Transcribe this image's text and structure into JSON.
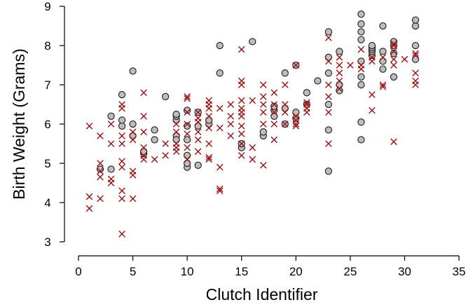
{
  "chart_data": {
    "type": "scatter",
    "xlabel": "Clutch Identifier",
    "ylabel": "Birth Weight (Grams)",
    "xlim": [
      0,
      35
    ],
    "ylim": [
      3,
      9
    ],
    "xticks": [
      0,
      5,
      10,
      15,
      20,
      25,
      30,
      35
    ],
    "yticks": [
      3,
      4,
      5,
      6,
      7,
      8,
      9
    ],
    "grid": false,
    "series": [
      {
        "marker": "circle",
        "color": "#bdbdbd",
        "edge_color": "#1a1a1a",
        "points": [
          [
            2,
            4.85
          ],
          [
            3,
            4.85
          ],
          [
            3,
            6.2
          ],
          [
            4,
            6.75
          ],
          [
            4,
            5.95
          ],
          [
            4,
            6.1
          ],
          [
            5,
            7.35
          ],
          [
            5,
            6.0
          ],
          [
            5,
            5.7
          ],
          [
            6,
            5.25
          ],
          [
            6,
            5.3
          ],
          [
            7,
            5.85
          ],
          [
            7,
            5.6
          ],
          [
            8,
            6.7
          ],
          [
            9,
            5.7
          ],
          [
            9,
            6.1
          ],
          [
            9,
            6.2
          ],
          [
            9,
            6.25
          ],
          [
            9,
            5.6
          ],
          [
            10,
            4.9
          ],
          [
            10,
            5.0
          ],
          [
            10,
            5.2
          ],
          [
            10,
            5.6
          ],
          [
            10,
            5.95
          ],
          [
            10,
            6.35
          ],
          [
            11,
            4.95
          ],
          [
            11,
            5.95
          ],
          [
            11,
            6.3
          ],
          [
            12,
            6.0
          ],
          [
            12,
            6.1
          ],
          [
            13,
            7.3
          ],
          [
            13,
            8.0
          ],
          [
            15,
            5.4
          ],
          [
            15,
            5.5
          ],
          [
            16,
            8.1
          ],
          [
            17,
            5.7
          ],
          [
            17,
            5.8
          ],
          [
            18,
            6.2
          ],
          [
            18,
            6.35
          ],
          [
            18,
            6.45
          ],
          [
            19,
            6.0
          ],
          [
            19,
            6.4
          ],
          [
            19,
            7.3
          ],
          [
            20,
            6.15
          ],
          [
            20,
            6.3
          ],
          [
            20,
            7.5
          ],
          [
            21,
            6.5
          ],
          [
            21,
            6.8
          ],
          [
            22,
            7.1
          ],
          [
            23,
            4.8
          ],
          [
            23,
            5.85
          ],
          [
            23,
            6.5
          ],
          [
            23,
            7.3
          ],
          [
            23,
            7.7
          ],
          [
            23,
            8.35
          ],
          [
            24,
            6.85
          ],
          [
            24,
            7.0
          ],
          [
            24,
            7.85
          ],
          [
            26,
            5.6
          ],
          [
            26,
            6.05
          ],
          [
            26,
            7.0
          ],
          [
            26,
            7.2
          ],
          [
            26,
            7.6
          ],
          [
            26,
            8.15
          ],
          [
            26,
            8.35
          ],
          [
            26,
            8.55
          ],
          [
            26,
            8.8
          ],
          [
            27,
            7.75
          ],
          [
            27,
            7.85
          ],
          [
            27,
            7.9
          ],
          [
            27,
            7.95
          ],
          [
            27,
            8.0
          ],
          [
            28,
            7.4
          ],
          [
            28,
            7.6
          ],
          [
            28,
            7.85
          ],
          [
            28,
            8.5
          ],
          [
            29,
            7.2
          ],
          [
            29,
            7.8
          ],
          [
            29,
            8.0
          ],
          [
            29,
            8.1
          ],
          [
            31,
            7.65
          ],
          [
            31,
            8.0
          ],
          [
            31,
            8.5
          ],
          [
            31,
            8.65
          ]
        ]
      },
      {
        "marker": "x",
        "color": "#9b1010",
        "points": [
          [
            1,
            3.85
          ],
          [
            1,
            4.15
          ],
          [
            1,
            5.95
          ],
          [
            2,
            4.1
          ],
          [
            2,
            4.65
          ],
          [
            2,
            4.8
          ],
          [
            2,
            5.0
          ],
          [
            2,
            5.7
          ],
          [
            3,
            4.5
          ],
          [
            3,
            4.6
          ],
          [
            3,
            5.5
          ],
          [
            3,
            6.0
          ],
          [
            4,
            3.2
          ],
          [
            4,
            4.1
          ],
          [
            4,
            4.3
          ],
          [
            4,
            4.9
          ],
          [
            4,
            5.05
          ],
          [
            4,
            5.5
          ],
          [
            4,
            5.7
          ],
          [
            4,
            6.4
          ],
          [
            4,
            6.5
          ],
          [
            5,
            4.1
          ],
          [
            5,
            4.7
          ],
          [
            5,
            4.8
          ],
          [
            5,
            5.6
          ],
          [
            5,
            5.8
          ],
          [
            6,
            5.1
          ],
          [
            6,
            5.2
          ],
          [
            6,
            5.4
          ],
          [
            6,
            5.8
          ],
          [
            6,
            6.2
          ],
          [
            6,
            6.8
          ],
          [
            7,
            5.1
          ],
          [
            8,
            5.2
          ],
          [
            8,
            5.5
          ],
          [
            9,
            5.3
          ],
          [
            9,
            5.4
          ],
          [
            9,
            5.5
          ],
          [
            9,
            5.8
          ],
          [
            9,
            6.0
          ],
          [
            10,
            5.1
          ],
          [
            10,
            5.4
          ],
          [
            10,
            5.75
          ],
          [
            10,
            6.0
          ],
          [
            10,
            6.3
          ],
          [
            10,
            6.65
          ],
          [
            10,
            6.7
          ],
          [
            11,
            5.3
          ],
          [
            11,
            5.6
          ],
          [
            11,
            5.8
          ],
          [
            11,
            6.05
          ],
          [
            11,
            6.15
          ],
          [
            11,
            6.3
          ],
          [
            12,
            5.1
          ],
          [
            12,
            5.15
          ],
          [
            12,
            5.5
          ],
          [
            12,
            5.9
          ],
          [
            12,
            6.2
          ],
          [
            12,
            6.4
          ],
          [
            12,
            6.5
          ],
          [
            12,
            6.6
          ],
          [
            13,
            4.3
          ],
          [
            13,
            4.35
          ],
          [
            13,
            4.9
          ],
          [
            13,
            5.9
          ],
          [
            13,
            6.4
          ],
          [
            14,
            5.7
          ],
          [
            14,
            6.0
          ],
          [
            14,
            6.2
          ],
          [
            14,
            6.5
          ],
          [
            15,
            5.2
          ],
          [
            15,
            5.5
          ],
          [
            15,
            5.75
          ],
          [
            15,
            5.95
          ],
          [
            15,
            6.2
          ],
          [
            15,
            6.3
          ],
          [
            15,
            6.4
          ],
          [
            15,
            6.6
          ],
          [
            15,
            7.0
          ],
          [
            15,
            7.1
          ],
          [
            15,
            7.9
          ],
          [
            16,
            5.1
          ],
          [
            16,
            5.4
          ],
          [
            16,
            6.6
          ],
          [
            17,
            4.95
          ],
          [
            17,
            6.0
          ],
          [
            17,
            6.3
          ],
          [
            17,
            6.5
          ],
          [
            17,
            6.7
          ],
          [
            17,
            7.0
          ],
          [
            18,
            5.6
          ],
          [
            18,
            6.0
          ],
          [
            18,
            6.3
          ],
          [
            18,
            6.5
          ],
          [
            18,
            6.8
          ],
          [
            19,
            6.0
          ],
          [
            19,
            6.3
          ],
          [
            19,
            6.5
          ],
          [
            19,
            7.0
          ],
          [
            20,
            5.95
          ],
          [
            20,
            6.0
          ],
          [
            20,
            6.1
          ],
          [
            20,
            6.2
          ],
          [
            20,
            7.5
          ],
          [
            21,
            6.3
          ],
          [
            21,
            6.4
          ],
          [
            21,
            6.5
          ],
          [
            21,
            6.55
          ],
          [
            23,
            5.5
          ],
          [
            23,
            6.3
          ],
          [
            23,
            6.7
          ],
          [
            23,
            7.0
          ],
          [
            23,
            7.6
          ],
          [
            23,
            8.2
          ],
          [
            24,
            6.9
          ],
          [
            24,
            7.1
          ],
          [
            24,
            7.3
          ],
          [
            24,
            7.5
          ],
          [
            24,
            7.7
          ],
          [
            25,
            7.5
          ],
          [
            26,
            7.4
          ],
          [
            26,
            7.5
          ],
          [
            26,
            7.9
          ],
          [
            27,
            6.35
          ],
          [
            27,
            6.75
          ],
          [
            27,
            7.6
          ],
          [
            27,
            7.7
          ],
          [
            28,
            6.95
          ],
          [
            28,
            7.0
          ],
          [
            28,
            7.7
          ],
          [
            29,
            5.55
          ],
          [
            29,
            7.5
          ],
          [
            29,
            7.65
          ],
          [
            29,
            7.85
          ],
          [
            29,
            8.0
          ],
          [
            29,
            8.05
          ],
          [
            30,
            7.65
          ],
          [
            31,
            7.0
          ],
          [
            31,
            7.1
          ],
          [
            31,
            7.3
          ],
          [
            31,
            7.75
          ],
          [
            31,
            7.8
          ]
        ]
      }
    ]
  }
}
